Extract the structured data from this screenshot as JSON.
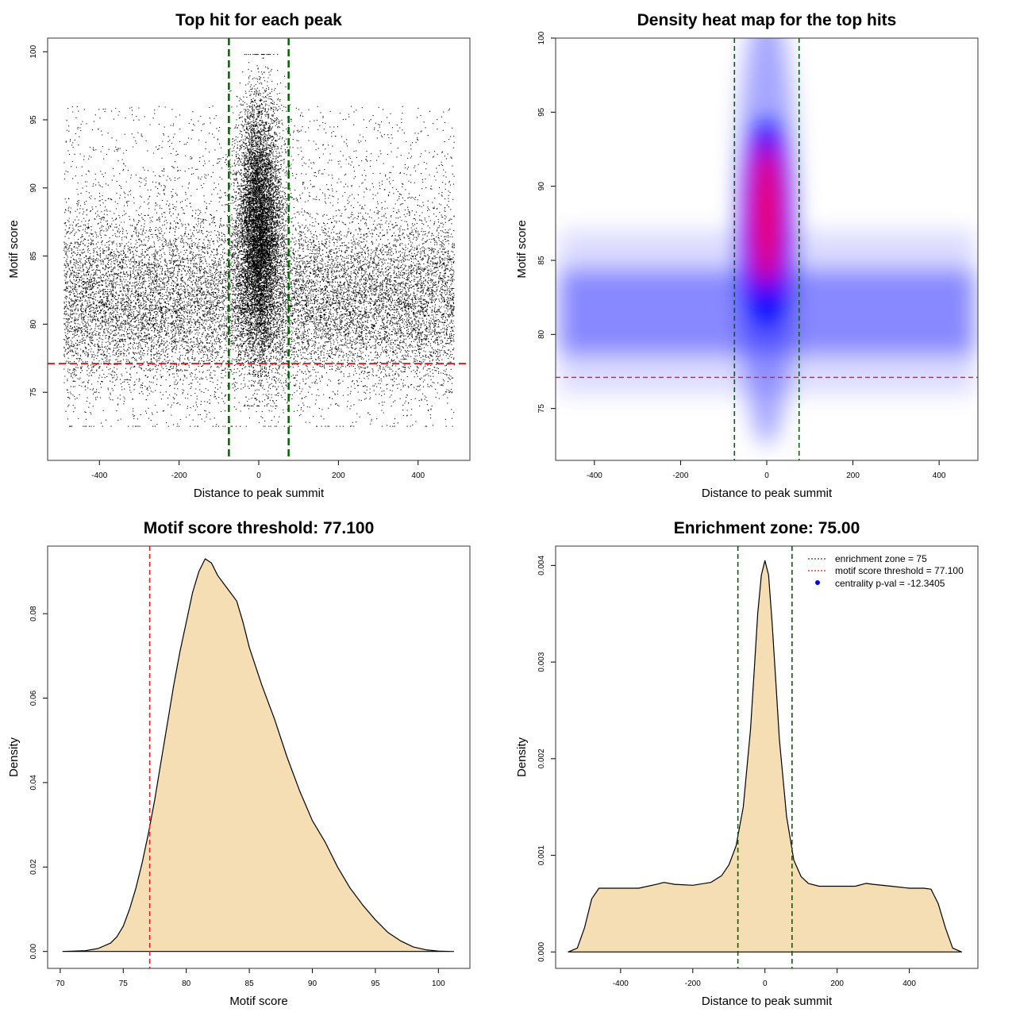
{
  "chart_data": [
    {
      "type": "scatter",
      "title": "Top hit for each peak",
      "xlabel": "Distance to peak summit",
      "ylabel": "Motif score",
      "xlim": [
        -530,
        530
      ],
      "ylim": [
        70,
        101
      ],
      "xticks": [
        -400,
        -200,
        0,
        200,
        400
      ],
      "yticks": [
        75,
        80,
        85,
        90,
        95,
        100
      ],
      "vlines": [
        -75,
        75
      ],
      "hline": 77.1,
      "point_density": "dense scatter of ~40000 points across x -490..490, y 73..99, concentrated near x = 0 and high scores",
      "colors": {
        "points": "#000000",
        "vlines": "#006400",
        "hline": "#e31a1c"
      }
    },
    {
      "type": "heatmap",
      "title": "Density heat map for the top hits",
      "xlabel": "Distance to peak summit",
      "ylabel": "Motif score",
      "xlim": [
        -490,
        490
      ],
      "ylim": [
        71.5,
        100
      ],
      "xticks": [
        -400,
        -200,
        0,
        200,
        400
      ],
      "yticks": [
        75,
        80,
        85,
        90,
        95,
        100
      ],
      "vlines": [
        -75,
        75
      ],
      "hline": 77.1,
      "density_peak": {
        "x": 0,
        "y": 88
      },
      "background_band_y": 81.5,
      "colors": {
        "low": "#ffffff",
        "mid": "#0000ff",
        "high": "#ff0000",
        "vlines": "#006400",
        "hline": "#e31a1c"
      }
    },
    {
      "type": "area",
      "title": "Motif score threshold: 77.100",
      "xlabel": "Motif score",
      "ylabel": "Density",
      "xlim": [
        69,
        102.5
      ],
      "ylim": [
        -0.004,
        0.096
      ],
      "xticks": [
        70,
        75,
        80,
        85,
        90,
        95,
        100
      ],
      "yticks": [
        0.0,
        0.02,
        0.04,
        0.06,
        0.08
      ],
      "ytick_labels": [
        "0.00",
        "0.02",
        "0.04",
        "0.06",
        "0.08"
      ],
      "vline": 77.1,
      "x": [
        70.2,
        72,
        73,
        74,
        74.5,
        75,
        75.5,
        76,
        76.5,
        77,
        77.5,
        78,
        78.5,
        79,
        79.5,
        80,
        80.5,
        81,
        81.5,
        82,
        82.5,
        83,
        83.5,
        84,
        84.5,
        85,
        86,
        87,
        88,
        89,
        90,
        91,
        92,
        93,
        94,
        95,
        96,
        97,
        98,
        99,
        100,
        101,
        101.2
      ],
      "y": [
        0.0,
        0.0002,
        0.0007,
        0.002,
        0.0035,
        0.006,
        0.01,
        0.015,
        0.021,
        0.028,
        0.036,
        0.045,
        0.054,
        0.063,
        0.071,
        0.078,
        0.085,
        0.09,
        0.093,
        0.092,
        0.089,
        0.087,
        0.085,
        0.083,
        0.078,
        0.072,
        0.063,
        0.055,
        0.046,
        0.038,
        0.031,
        0.026,
        0.02,
        0.015,
        0.011,
        0.0075,
        0.0045,
        0.0025,
        0.0011,
        0.0004,
        0.0001,
        0.0,
        0.0
      ],
      "colors": {
        "fill": "#f5deb3",
        "line": "#000000",
        "vline": "#e31a1c"
      }
    },
    {
      "type": "area",
      "title": "Enrichment zone: 75.00",
      "xlabel": "Distance to peak summit",
      "ylabel": "Density",
      "xlim": [
        -580,
        590
      ],
      "ylim": [
        -0.00017,
        0.0042
      ],
      "xticks": [
        -400,
        -200,
        0,
        200,
        400
      ],
      "yticks": [
        0.0,
        0.001,
        0.002,
        0.003,
        0.004
      ],
      "ytick_labels": [
        "0.000",
        "0.001",
        "0.002",
        "0.003",
        "0.004"
      ],
      "vlines": [
        -75,
        75
      ],
      "x": [
        -545,
        -520,
        -500,
        -480,
        -460,
        -440,
        -400,
        -350,
        -300,
        -280,
        -250,
        -200,
        -150,
        -120,
        -100,
        -80,
        -60,
        -40,
        -30,
        -20,
        -10,
        0,
        10,
        20,
        30,
        40,
        60,
        80,
        100,
        120,
        150,
        200,
        250,
        280,
        300,
        350,
        400,
        440,
        460,
        480,
        500,
        520,
        545
      ],
      "y": [
        0.0,
        4e-05,
        0.00025,
        0.00055,
        0.00066,
        0.00066,
        0.00066,
        0.00066,
        0.0007,
        0.00072,
        0.0007,
        0.00069,
        0.00072,
        0.00079,
        0.0009,
        0.0011,
        0.0015,
        0.0023,
        0.0029,
        0.0035,
        0.0039,
        0.00405,
        0.0039,
        0.0034,
        0.0028,
        0.0022,
        0.0014,
        0.00095,
        0.00078,
        0.00071,
        0.00068,
        0.00068,
        0.00068,
        0.00071,
        0.0007,
        0.00068,
        0.00066,
        0.00066,
        0.00065,
        0.0005,
        0.00025,
        4e-05,
        0.0
      ],
      "legend": [
        {
          "label": "enrichment zone = 75",
          "symbol": "dotted-line",
          "color": "#006400"
        },
        {
          "label": "motif score threshold = 77.100",
          "symbol": "dotted-line",
          "color": "#e31a1c"
        },
        {
          "label": "centrality p-val = -12.3405",
          "symbol": "dot",
          "color": "#0000ff"
        }
      ],
      "legend_position": "top-right",
      "colors": {
        "fill": "#f5deb3",
        "line": "#000000",
        "vlines": "#006400"
      }
    }
  ]
}
